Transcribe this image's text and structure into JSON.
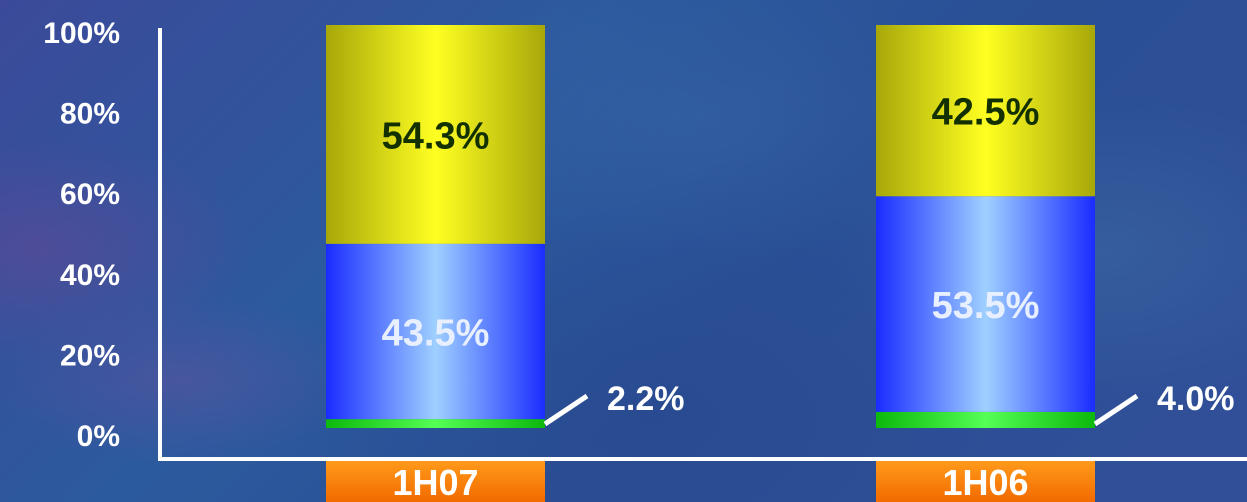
{
  "chart_data": {
    "type": "bar",
    "stacked": true,
    "categories": [
      "1H07",
      "1H06"
    ],
    "series": [
      {
        "values": [
          2.2,
          4.0
        ],
        "labels": [
          "2.2%",
          "4.0%"
        ],
        "color": "#22e022"
      },
      {
        "values": [
          43.5,
          53.5
        ],
        "labels": [
          "43.5%",
          "53.5%"
        ],
        "color": "#3f5cff"
      },
      {
        "values": [
          54.3,
          42.5
        ],
        "labels": [
          "54.3%",
          "42.5%"
        ],
        "color": "#e6e61a"
      }
    ],
    "yticks": [
      "0%",
      "20%",
      "40%",
      "60%",
      "80%",
      "100%"
    ],
    "ylim": [
      0,
      100
    ],
    "title": "",
    "xlabel": "",
    "ylabel": "",
    "category_label_color": "#ff7a00",
    "grid": false,
    "legend": "none"
  }
}
